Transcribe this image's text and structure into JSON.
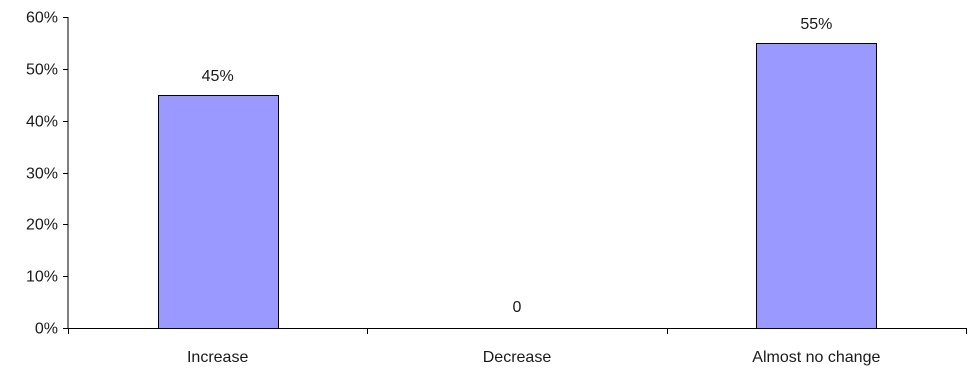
{
  "chart_data": {
    "type": "bar",
    "title": "",
    "xlabel": "",
    "ylabel": "",
    "categories": [
      "Increase",
      "Decrease",
      "Almost no change"
    ],
    "values": [
      45,
      0,
      55
    ],
    "data_labels": [
      "45%",
      "0",
      "55%"
    ],
    "ylim": [
      0,
      60
    ],
    "y_ticks": [
      0,
      10,
      20,
      30,
      40,
      50,
      60
    ],
    "y_tick_labels": [
      "0%",
      "10%",
      "20%",
      "30%",
      "40%",
      "50%",
      "60%"
    ],
    "grid": false,
    "legend": "none",
    "colors": {
      "bar_fill": "#9999ff",
      "bar_stroke": "#000000",
      "axis": "#000000",
      "text": "#1a1a1a"
    }
  }
}
